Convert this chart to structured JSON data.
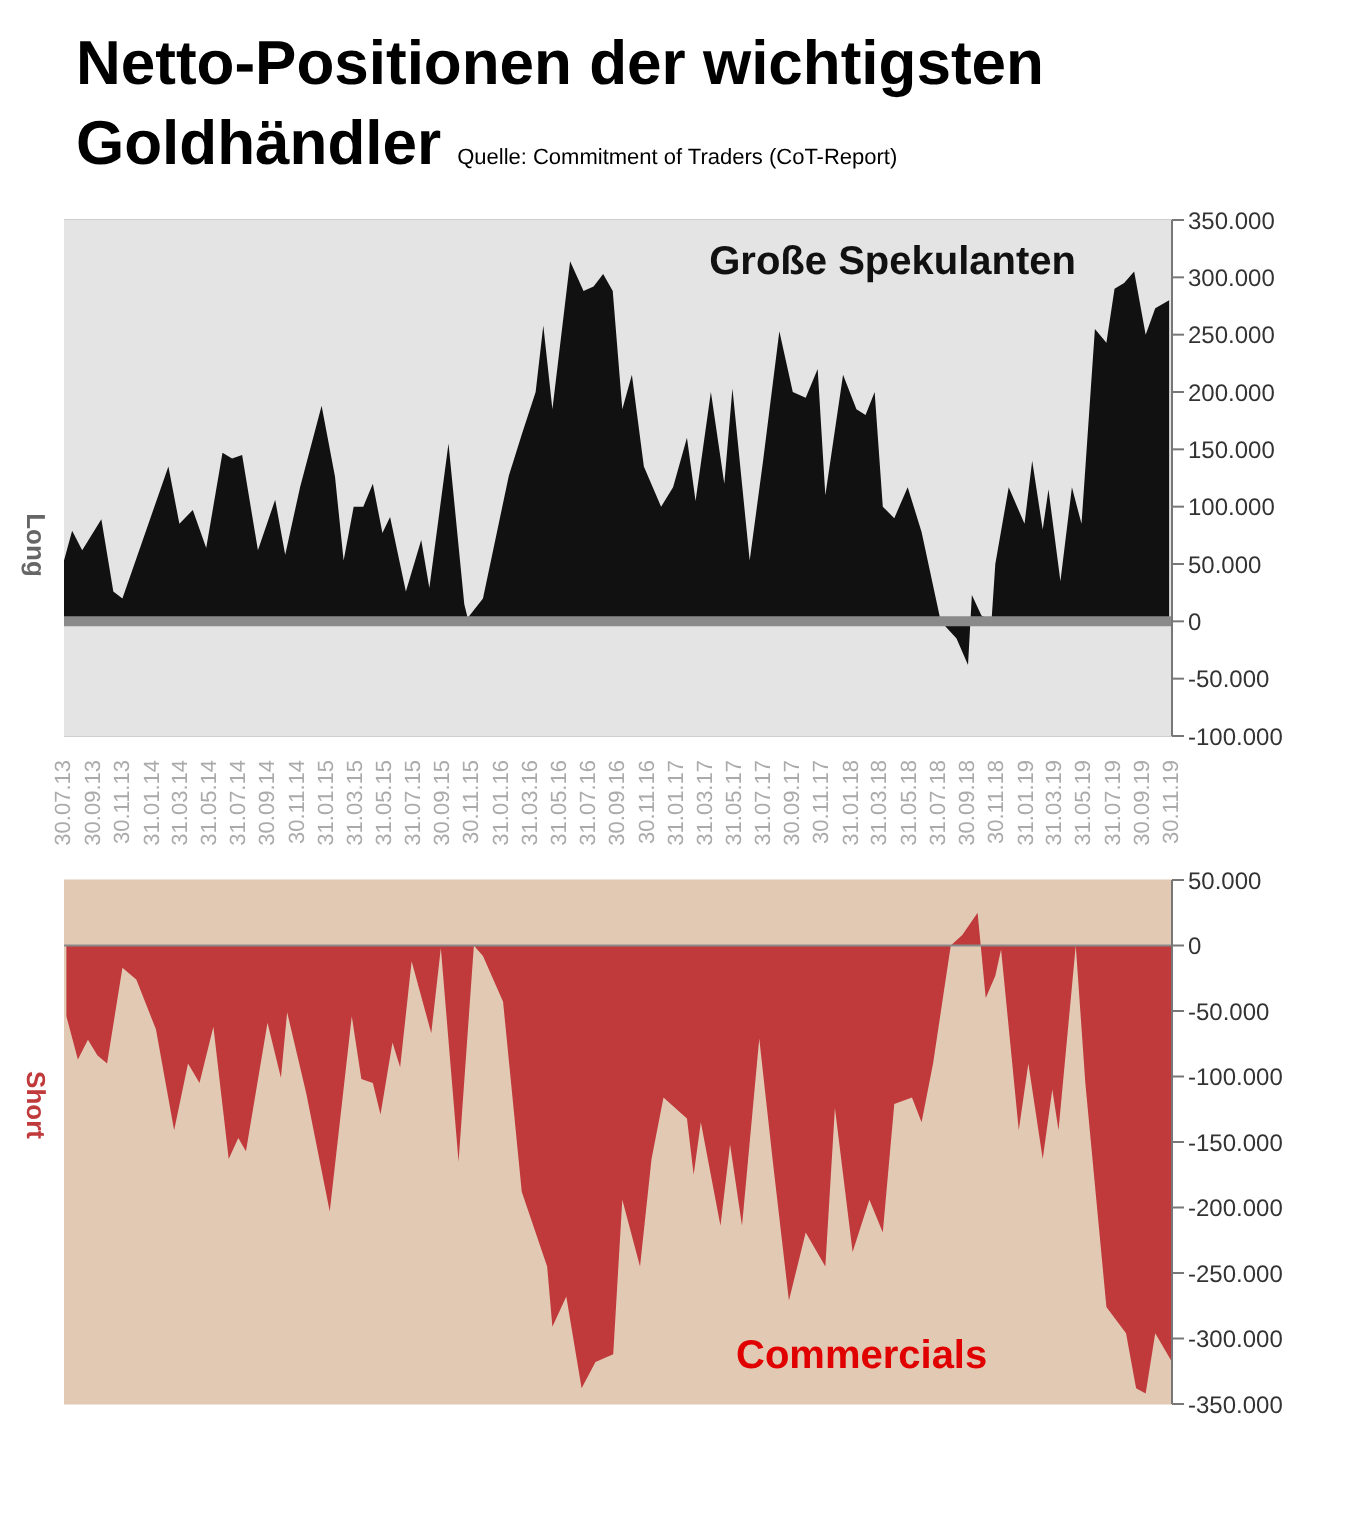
{
  "chart_data": [
    {
      "type": "area",
      "title": "Netto-Positionen der wichtigsten Goldhändler",
      "annotations": [
        "Quelle: Commitment of Traders (CoT-Report)"
      ],
      "ylabel": "Long",
      "xlim": [
        "2013-07-30",
        "2019-11-30"
      ],
      "xticks": [
        {
          "value": "2013-07-30",
          "label": "30.07.13"
        },
        {
          "value": "2013-09-30",
          "label": "30.09.13"
        },
        {
          "value": "2013-11-30",
          "label": "30.11.13"
        },
        {
          "value": "2014-01-31",
          "label": "31.01.14"
        },
        {
          "value": "2014-03-31",
          "label": "31.03.14"
        },
        {
          "value": "2014-05-31",
          "label": "31.05.14"
        },
        {
          "value": "2014-07-31",
          "label": "31.07.14"
        },
        {
          "value": "2014-09-30",
          "label": "30.09.14"
        },
        {
          "value": "2014-11-30",
          "label": "30.11.14"
        },
        {
          "value": "2015-01-31",
          "label": "31.01.15"
        },
        {
          "value": "2015-03-31",
          "label": "31.03.15"
        },
        {
          "value": "2015-05-31",
          "label": "31.05.15"
        },
        {
          "value": "2015-07-31",
          "label": "31.07.15"
        },
        {
          "value": "2015-09-30",
          "label": "30.09.15"
        },
        {
          "value": "2015-11-30",
          "label": "30.11.15"
        },
        {
          "value": "2016-01-31",
          "label": "31.01.16"
        },
        {
          "value": "2016-03-31",
          "label": "31.03.16"
        },
        {
          "value": "2016-05-31",
          "label": "31.05.16"
        },
        {
          "value": "2016-07-31",
          "label": "31.07.16"
        },
        {
          "value": "2016-09-30",
          "label": "30.09.16"
        },
        {
          "value": "2016-11-30",
          "label": "30.11.16"
        },
        {
          "value": "2017-01-31",
          "label": "31.01.17"
        },
        {
          "value": "2017-03-31",
          "label": "31.03.17"
        },
        {
          "value": "2017-05-31",
          "label": "31.05.17"
        },
        {
          "value": "2017-07-31",
          "label": "31.07.17"
        },
        {
          "value": "2017-09-30",
          "label": "30.09.17"
        },
        {
          "value": "2017-11-30",
          "label": "30.11.17"
        },
        {
          "value": "2018-01-31",
          "label": "31.01.18"
        },
        {
          "value": "2018-03-31",
          "label": "31.03.18"
        },
        {
          "value": "2018-05-31",
          "label": "31.05.18"
        },
        {
          "value": "2018-07-31",
          "label": "31.07.18"
        },
        {
          "value": "2018-09-30",
          "label": "30.09.18"
        },
        {
          "value": "2018-11-30",
          "label": "30.11.18"
        },
        {
          "value": "2019-01-31",
          "label": "31.01.19"
        },
        {
          "value": "2019-03-31",
          "label": "31.03.19"
        },
        {
          "value": "2019-05-31",
          "label": "31.05.19"
        },
        {
          "value": "2019-07-31",
          "label": "31.07.19"
        },
        {
          "value": "2019-09-30",
          "label": "30.09.19"
        },
        {
          "value": "2019-11-30",
          "label": "30.11.19"
        }
      ],
      "ylim": [
        -100000,
        350000
      ],
      "yticks": [
        {
          "value": -100000,
          "label": "-100.000"
        },
        {
          "value": -50000,
          "label": "-50.000"
        },
        {
          "value": 0,
          "label": "0"
        },
        {
          "value": 50000,
          "label": "50.000"
        },
        {
          "value": 100000,
          "label": "100.000"
        },
        {
          "value": 150000,
          "label": "150.000"
        },
        {
          "value": 200000,
          "label": "200.000"
        },
        {
          "value": 250000,
          "label": "250.000"
        },
        {
          "value": 300000,
          "label": "300.000"
        },
        {
          "value": 350000,
          "label": "350.000"
        }
      ],
      "grid": "y",
      "series": [
        {
          "name": "Große Spekulanten",
          "color": "#111111",
          "x": [
            "2013-07-30",
            "2013-08-16",
            "2013-09-06",
            "2013-10-16",
            "2013-11-10",
            "2013-11-29",
            "2014-03-05",
            "2014-03-28",
            "2014-04-25",
            "2014-05-23",
            "2014-06-26",
            "2014-07-16",
            "2014-08-06",
            "2014-09-08",
            "2014-10-14",
            "2014-11-04",
            "2014-12-05",
            "2015-01-19",
            "2015-02-16",
            "2015-03-06",
            "2015-03-27",
            "2015-04-16",
            "2015-05-06",
            "2015-05-26",
            "2015-06-11",
            "2015-07-14",
            "2015-08-15",
            "2015-09-01",
            "2015-10-11",
            "2015-11-13",
            "2015-11-20",
            "2015-12-22",
            "2016-02-14",
            "2016-03-12",
            "2016-04-10",
            "2016-04-26",
            "2016-05-15",
            "2016-06-21",
            "2016-07-19",
            "2016-08-09",
            "2016-08-29",
            "2016-09-18",
            "2016-10-08",
            "2016-10-28",
            "2016-11-22",
            "2016-12-28",
            "2017-01-22",
            "2017-02-20",
            "2017-03-10",
            "2017-04-11",
            "2017-05-09",
            "2017-05-26",
            "2017-07-01",
            "2017-07-29",
            "2017-09-01",
            "2017-09-29",
            "2017-10-26",
            "2017-11-20",
            "2017-12-06",
            "2018-01-12",
            "2018-02-09",
            "2018-02-28",
            "2018-03-19",
            "2018-04-05",
            "2018-04-29",
            "2018-05-27",
            "2018-06-25",
            "2018-08-04",
            "2018-09-06",
            "2018-09-30",
            "2018-10-08",
            "2018-10-28",
            "2018-11-18",
            "2018-11-26",
            "2018-12-24",
            "2019-01-26",
            "2019-02-11",
            "2019-03-05",
            "2019-03-17",
            "2019-04-11",
            "2019-05-05",
            "2019-05-25",
            "2019-06-22",
            "2019-07-16",
            "2019-08-02",
            "2019-08-22",
            "2019-09-12",
            "2019-10-06",
            "2019-10-26",
            "2019-11-24"
          ],
          "values": [
            53000,
            79000,
            62000,
            89000,
            26000,
            20000,
            135000,
            85000,
            97000,
            64000,
            147000,
            142000,
            145000,
            62000,
            106000,
            58000,
            117000,
            188000,
            126000,
            53000,
            100000,
            100000,
            120000,
            77000,
            91000,
            26000,
            71000,
            29000,
            155000,
            15000,
            3000,
            20000,
            127000,
            163000,
            200000,
            258000,
            185000,
            314000,
            288000,
            292000,
            303000,
            288000,
            185000,
            215000,
            135000,
            100000,
            117000,
            160000,
            105000,
            200000,
            120000,
            203000,
            53000,
            140000,
            253000,
            200000,
            195000,
            220000,
            110000,
            215000,
            185000,
            180000,
            200000,
            100000,
            90000,
            117000,
            78000,
            0,
            -15000,
            -38000,
            23000,
            5000,
            0,
            50000,
            117000,
            85000,
            140000,
            80000,
            115000,
            35000,
            117000,
            85000,
            255000,
            243000,
            290000,
            295000,
            305000,
            250000,
            273000,
            280000
          ]
        }
      ]
    },
    {
      "type": "area",
      "ylabel": "Short",
      "tick_labels": "y",
      "xlim": [
        "2013-07-30",
        "2019-11-30"
      ],
      "ylim": [
        -350000,
        50000
      ],
      "yticks": [
        {
          "value": -350000,
          "label": "-350.000"
        },
        {
          "value": -300000,
          "label": "-300.000"
        },
        {
          "value": -250000,
          "label": "-250.000"
        },
        {
          "value": -200000,
          "label": "-200.000"
        },
        {
          "value": -150000,
          "label": "-150.000"
        },
        {
          "value": -100000,
          "label": "-100.000"
        },
        {
          "value": -50000,
          "label": "-50.000"
        },
        {
          "value": 0,
          "label": "0"
        },
        {
          "value": 50000,
          "label": "50.000"
        }
      ],
      "grid": "y",
      "series": [
        {
          "name": "Commercials",
          "color": "#c0393b",
          "x": [
            "2013-08-04",
            "2013-08-28",
            "2013-09-18",
            "2013-10-08",
            "2013-10-28",
            "2013-11-29",
            "2013-12-28",
            "2014-02-07",
            "2014-03-17",
            "2014-04-15",
            "2014-05-09",
            "2014-06-07",
            "2014-07-09",
            "2014-07-29",
            "2014-08-14",
            "2014-09-28",
            "2014-10-26",
            "2014-11-08",
            "2014-12-18",
            "2015-02-05",
            "2015-03-23",
            "2015-04-12",
            "2015-05-06",
            "2015-05-22",
            "2015-06-16",
            "2015-07-02",
            "2015-07-26",
            "2015-09-05",
            "2015-09-25",
            "2015-11-01",
            "2015-12-03",
            "2015-12-22",
            "2016-02-02",
            "2016-03-12",
            "2016-05-04",
            "2016-05-15",
            "2016-06-13",
            "2016-07-15",
            "2016-08-13",
            "2016-09-19",
            "2016-10-08",
            "2016-11-14",
            "2016-12-08",
            "2017-01-02",
            "2017-02-20",
            "2017-03-06",
            "2017-03-21",
            "2017-05-01",
            "2017-05-21",
            "2017-06-15",
            "2017-07-21",
            "2017-08-19",
            "2017-09-21",
            "2017-10-26",
            "2017-12-06",
            "2017-12-26",
            "2018-02-01",
            "2018-03-08",
            "2018-04-05",
            "2018-04-29",
            "2018-06-05",
            "2018-06-25",
            "2018-07-19",
            "2018-08-25",
            "2018-09-18",
            "2018-10-20",
            "2018-11-06",
            "2018-11-26",
            "2018-12-08",
            "2019-01-14",
            "2019-02-03",
            "2019-03-05",
            "2019-03-25",
            "2019-04-07",
            "2019-05-13",
            "2019-06-02",
            "2019-07-16",
            "2019-08-26",
            "2019-09-16",
            "2019-10-06",
            "2019-10-26",
            "2019-11-30"
          ],
          "values": [
            -54000,
            -87000,
            -72000,
            -84000,
            -90000,
            -17000,
            -26000,
            -64000,
            -141000,
            -90000,
            -105000,
            -62000,
            -163000,
            -147000,
            -157000,
            -59000,
            -101000,
            -51000,
            -113000,
            -203000,
            -54000,
            -102000,
            -105000,
            -129000,
            -74000,
            -93000,
            -12000,
            -67000,
            -2000,
            -165000,
            0,
            -8000,
            -43000,
            -188000,
            -245000,
            -291000,
            -268000,
            -338000,
            -318000,
            -312000,
            -194000,
            -245000,
            -163000,
            -116000,
            -132000,
            -175000,
            -135000,
            -214000,
            -152000,
            -214000,
            -71000,
            -167000,
            -271000,
            -219000,
            -245000,
            -124000,
            -234000,
            -194000,
            -219000,
            -121000,
            -116000,
            -135000,
            -90000,
            0,
            8000,
            25000,
            -40000,
            -23000,
            -3000,
            -141000,
            -90000,
            -163000,
            -110000,
            -141000,
            0,
            -105000,
            -276000,
            -296000,
            -338000,
            -342000,
            -296000,
            -318000
          ]
        }
      ]
    }
  ]
}
